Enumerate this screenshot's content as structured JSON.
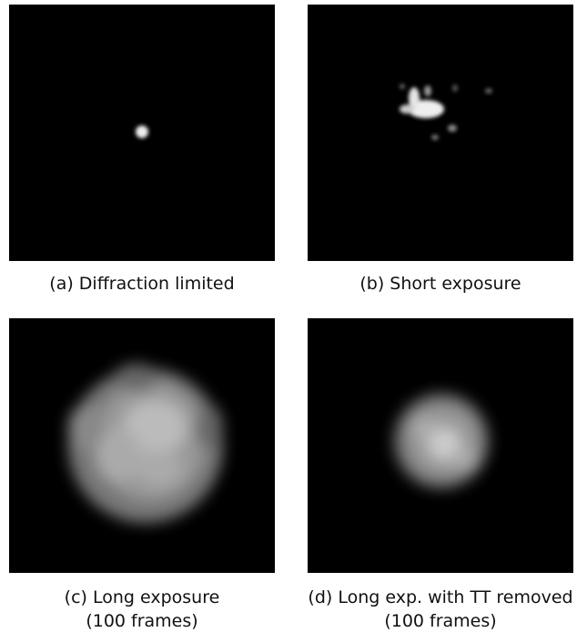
{
  "panels": [
    {
      "caption": [
        "(a) Diffraction limited"
      ]
    },
    {
      "caption": [
        "(b) Short exposure"
      ]
    },
    {
      "caption": [
        "(c) Long exposure",
        "(100 frames)"
      ]
    },
    {
      "caption": [
        "(d) Long exp. with TT removed",
        "(100 frames)"
      ]
    }
  ]
}
